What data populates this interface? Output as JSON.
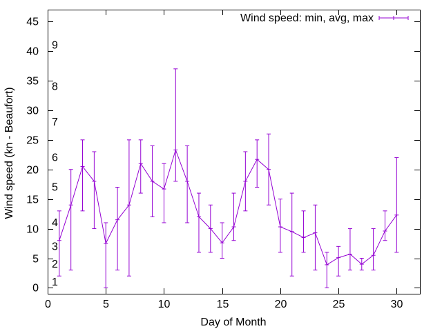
{
  "chart_data": {
    "type": "line",
    "xlabel": "Day of Month",
    "ylabel": "Wind speed (kn - Beaufort)",
    "xlim": [
      0,
      32
    ],
    "ylim": [
      -1,
      47
    ],
    "xticks": [
      0,
      5,
      10,
      15,
      20,
      25,
      30
    ],
    "yticks": [
      0,
      5,
      10,
      15,
      20,
      25,
      30,
      35,
      40,
      45
    ],
    "beaufort_labels": [
      {
        "label": "1",
        "y": 1
      },
      {
        "label": "2",
        "y": 4
      },
      {
        "label": "3",
        "y": 7
      },
      {
        "label": "4",
        "y": 11
      },
      {
        "label": "5",
        "y": 17
      },
      {
        "label": "6",
        "y": 22
      },
      {
        "label": "7",
        "y": 28
      },
      {
        "label": "8",
        "y": 34
      },
      {
        "label": "9",
        "y": 41
      }
    ],
    "legend_position": "top-right",
    "grid": false,
    "color": "#9400D3",
    "series": [
      {
        "name": "Wind speed: min, avg, max",
        "x": [
          1,
          2,
          3,
          4,
          5,
          6,
          7,
          8,
          9,
          10,
          11,
          12,
          13,
          14,
          15,
          16,
          17,
          18,
          19,
          20,
          21,
          22,
          23,
          24,
          25,
          26,
          27,
          28,
          29,
          30
        ],
        "avg": [
          8,
          14,
          20.5,
          18,
          7.5,
          11.5,
          14,
          21,
          18,
          16.7,
          23.3,
          18,
          12,
          10,
          7.6,
          10.3,
          18,
          21.7,
          20,
          10.3,
          9.5,
          8.5,
          9.3,
          3.9,
          5.1,
          5.7,
          4,
          5.5,
          9.6,
          12.3
        ],
        "min": [
          2,
          3,
          13,
          10,
          0,
          3,
          2,
          16,
          12,
          11,
          18,
          11,
          6,
          6,
          5,
          8,
          13,
          17,
          14,
          6,
          2,
          6,
          3,
          0,
          2,
          3,
          3,
          3,
          8,
          6
        ],
        "max": [
          13,
          20,
          25,
          23,
          11,
          17,
          25,
          25,
          24,
          21,
          37,
          24,
          16,
          14,
          11,
          16,
          23,
          25,
          26,
          15,
          16,
          13,
          14,
          6,
          7,
          10,
          5,
          10,
          13,
          22
        ]
      }
    ]
  }
}
